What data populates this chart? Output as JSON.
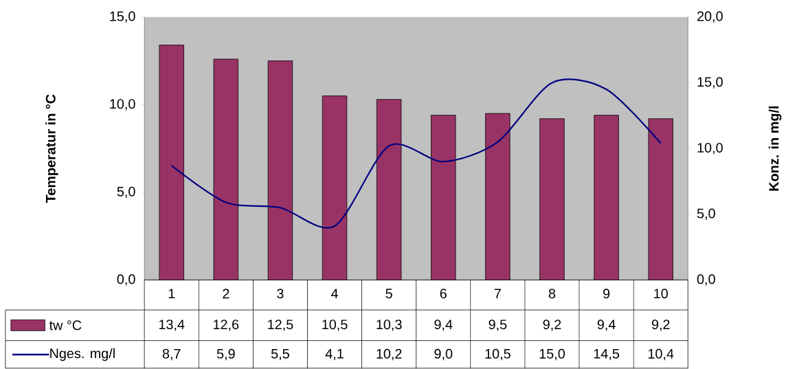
{
  "chart_data": {
    "type": "bar",
    "categories": [
      "1",
      "2",
      "3",
      "4",
      "5",
      "6",
      "7",
      "8",
      "9",
      "10"
    ],
    "series": [
      {
        "name": "tw °C",
        "color": "#993366",
        "values": [
          13.4,
          12.6,
          12.5,
          10.5,
          10.3,
          9.4,
          9.5,
          9.2,
          9.4,
          9.2
        ],
        "value_labels": [
          "13,4",
          "12,6",
          "12,5",
          "10,5",
          "10,3",
          "9,4",
          "9,5",
          "9,2",
          "9,4",
          "9,2"
        ]
      },
      {
        "name": "Nges. mg/l",
        "type": "line",
        "axis": "y2",
        "color": "#000080",
        "values": [
          8.7,
          5.9,
          5.5,
          4.1,
          10.2,
          9.0,
          10.5,
          15.0,
          14.5,
          10.4
        ],
        "value_labels": [
          "8,7",
          "5,9",
          "5,5",
          "4,1",
          "10,2",
          "9,0",
          "10,5",
          "15,0",
          "14,5",
          "10,4"
        ]
      }
    ],
    "ylabel": "Temperatur in °C",
    "y2label": "Konz. in mg/l",
    "ylim": [
      0,
      15
    ],
    "yticks": [
      {
        "value": 0,
        "label": "0,0"
      },
      {
        "value": 5,
        "label": "5,0"
      },
      {
        "value": 10,
        "label": "10,0"
      },
      {
        "value": 15,
        "label": "15,0"
      }
    ],
    "y2lim": [
      0,
      20
    ],
    "y2ticks": [
      {
        "value": 0,
        "label": "0,0"
      },
      {
        "value": 5,
        "label": "5,0"
      },
      {
        "value": 10,
        "label": "10,0"
      },
      {
        "value": 15,
        "label": "15,0"
      },
      {
        "value": 20,
        "label": "20,0"
      }
    ],
    "legend": "bottom left"
  }
}
